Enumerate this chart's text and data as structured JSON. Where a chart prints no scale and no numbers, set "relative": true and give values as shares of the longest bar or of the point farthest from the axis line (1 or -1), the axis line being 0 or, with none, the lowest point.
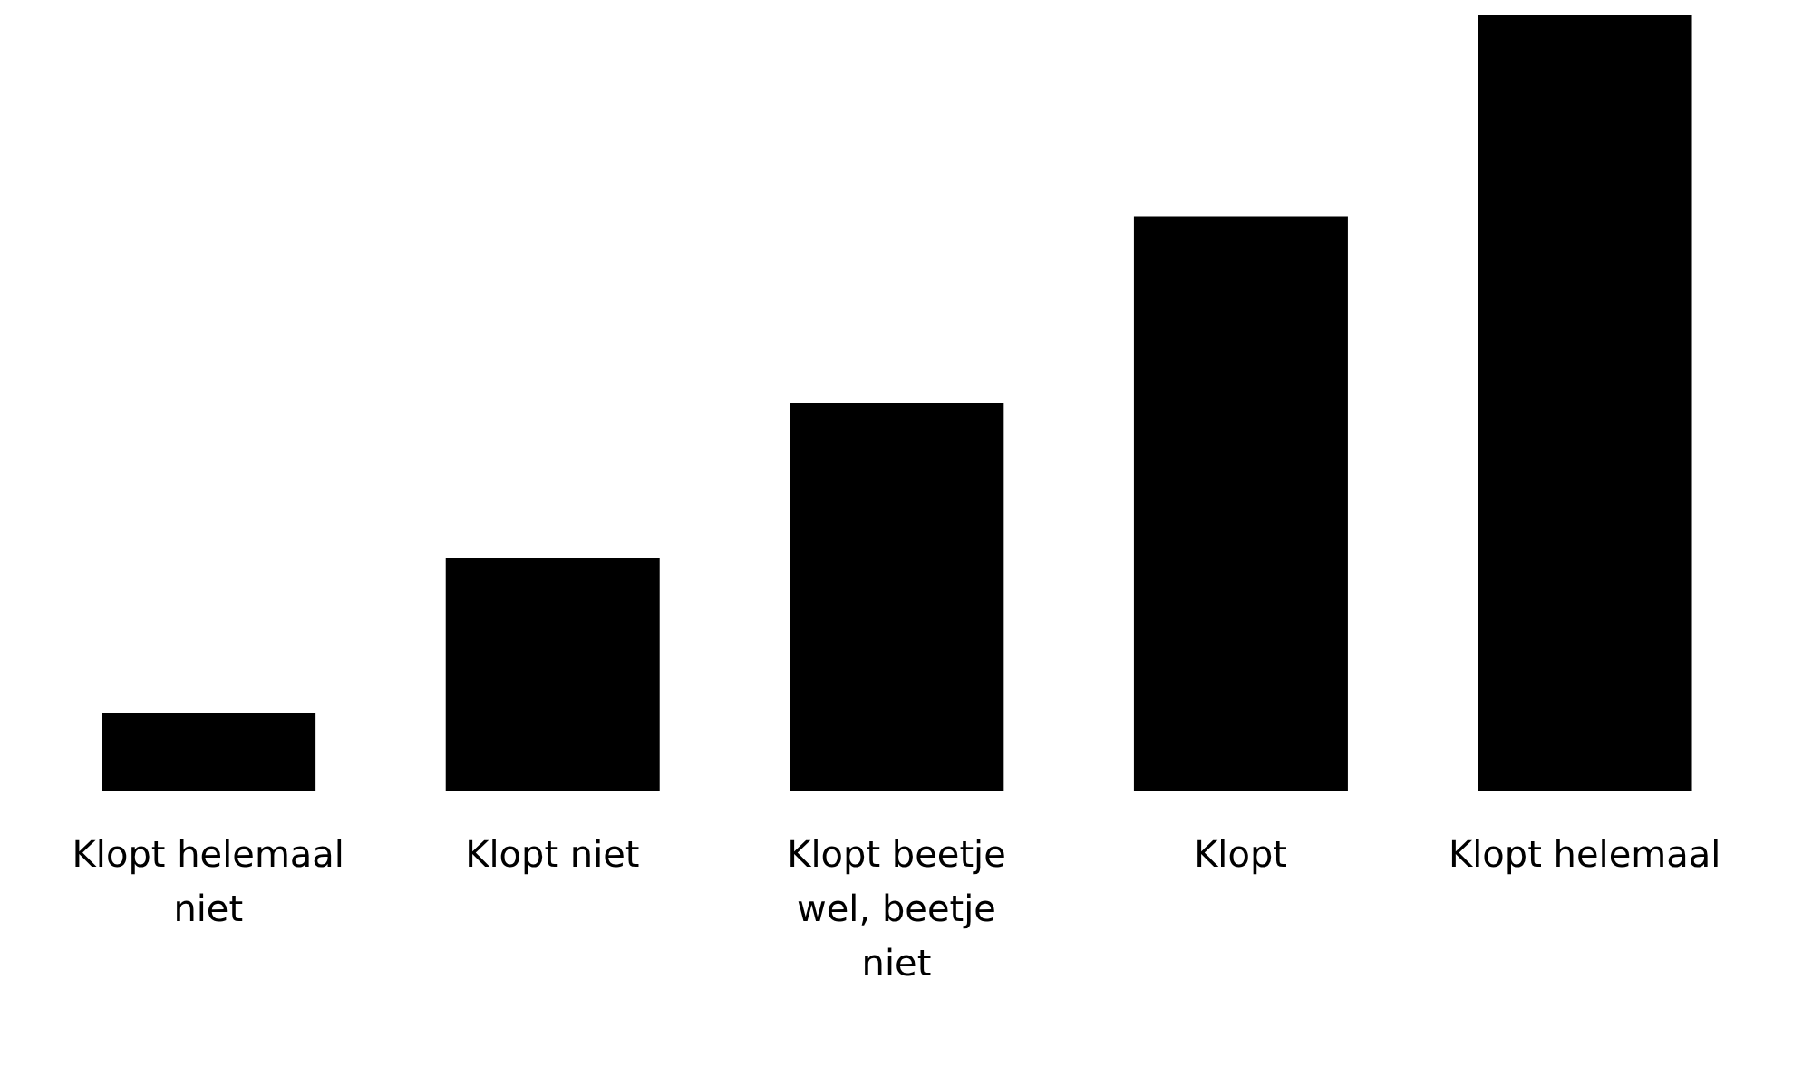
{
  "chart_data": {
    "type": "bar",
    "relative": true,
    "categories": [
      "Klopt helemaal niet",
      "Klopt niet",
      "Klopt beetje wel, beetje niet",
      "Klopt",
      "Klopt helemaal"
    ],
    "values": [
      0.1,
      0.3,
      0.5,
      0.74,
      1
    ],
    "color": "#000000",
    "grid": false,
    "legend": false
  }
}
